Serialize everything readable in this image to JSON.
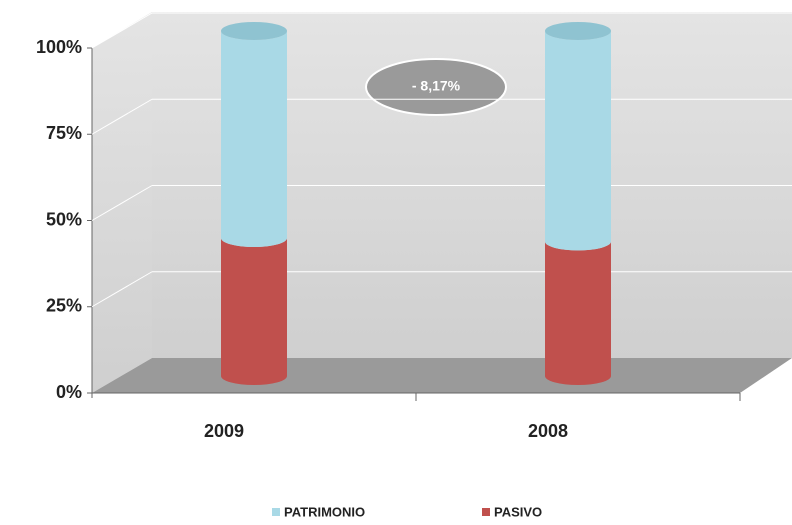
{
  "chart_data": {
    "type": "stacked_bar_3d",
    "categories": [
      "2009",
      "2008"
    ],
    "series": [
      {
        "name": "PATRIMONIO",
        "color": "#a9d9e6",
        "values": [
          60,
          61
        ]
      },
      {
        "name": "PASIVO",
        "color": "#c0504d",
        "values": [
          40,
          39
        ]
      }
    ],
    "ylim": [
      0,
      100
    ],
    "yticks": [
      {
        "value": 0,
        "label": "0%"
      },
      {
        "value": 25,
        "label": "25%"
      },
      {
        "value": 50,
        "label": "50%"
      },
      {
        "value": 75,
        "label": "75%"
      },
      {
        "value": 100,
        "label": "100%"
      }
    ],
    "grid": true,
    "annotation": "- 8,17%",
    "legend": "bottom"
  }
}
